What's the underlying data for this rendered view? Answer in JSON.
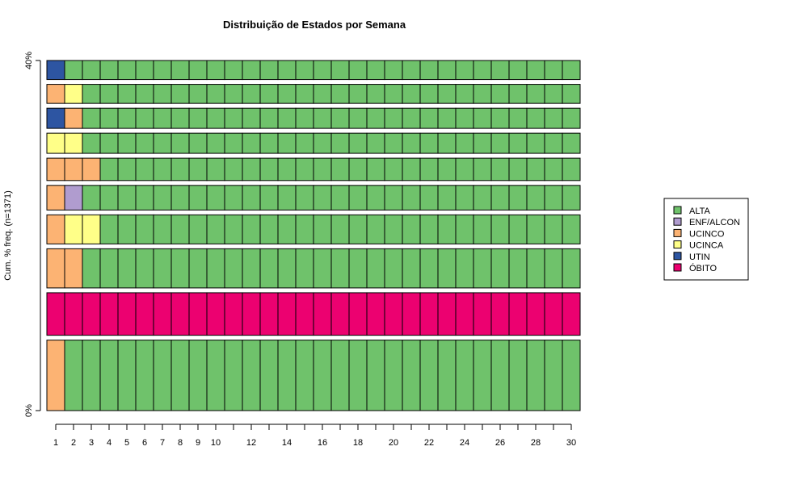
{
  "chart_data": {
    "type": "sequence-frequency-plot",
    "title": "Distribuição de Estados por Semana",
    "ylabel": "Cum. % freq. (n=1371)",
    "ytick_labels": [
      "0%",
      "40%"
    ],
    "x_ticks": [
      1,
      2,
      3,
      4,
      5,
      6,
      7,
      8,
      9,
      10,
      11,
      12,
      13,
      14,
      15,
      16,
      17,
      18,
      19,
      20,
      21,
      22,
      23,
      24,
      25,
      26,
      27,
      28,
      29,
      30
    ],
    "x_tick_labels": [
      "1",
      "2",
      "3",
      "4",
      "5",
      "6",
      "7",
      "8",
      "9",
      "10",
      "12",
      "14",
      "16",
      "18",
      "20",
      "22",
      "24",
      "26",
      "28",
      "30"
    ],
    "states": [
      {
        "name": "ALTA",
        "color": "#6FC26B"
      },
      {
        "name": "ENF/ALCON",
        "color": "#B09CCF"
      },
      {
        "name": "UCINCO",
        "color": "#FCB373"
      },
      {
        "name": "UCINCA",
        "color": "#FFFF88"
      },
      {
        "name": "UTIN",
        "color": "#2D55A2"
      },
      {
        "name": "ÓBITO",
        "color": "#EC0170"
      }
    ],
    "sequences": [
      {
        "pattern": [
          [
            "UCINCO",
            1
          ],
          [
            "ALTA",
            29
          ]
        ],
        "freq_pct": 6.3
      },
      {
        "pattern": [
          [
            "ÓBITO",
            30
          ]
        ],
        "freq_pct": 3.8
      },
      {
        "pattern": [
          [
            "UCINCO",
            2
          ],
          [
            "ALTA",
            28
          ]
        ],
        "freq_pct": 3.5
      },
      {
        "pattern": [
          [
            "UCINCO",
            1
          ],
          [
            "UCINCA",
            2
          ],
          [
            "ALTA",
            27
          ]
        ],
        "freq_pct": 2.6
      },
      {
        "pattern": [
          [
            "UCINCO",
            1
          ],
          [
            "ENF/ALCON",
            1
          ],
          [
            "ALTA",
            28
          ]
        ],
        "freq_pct": 2.2
      },
      {
        "pattern": [
          [
            "UCINCO",
            3
          ],
          [
            "ALTA",
            27
          ]
        ],
        "freq_pct": 2.0
      },
      {
        "pattern": [
          [
            "UCINCA",
            2
          ],
          [
            "ALTA",
            28
          ]
        ],
        "freq_pct": 1.8
      },
      {
        "pattern": [
          [
            "UTIN",
            1
          ],
          [
            "UCINCO",
            1
          ],
          [
            "ALTA",
            28
          ]
        ],
        "freq_pct": 1.8
      },
      {
        "pattern": [
          [
            "UCINCO",
            1
          ],
          [
            "UCINCA",
            1
          ],
          [
            "ALTA",
            28
          ]
        ],
        "freq_pct": 1.7
      },
      {
        "pattern": [
          [
            "UTIN",
            1
          ],
          [
            "ALTA",
            29
          ]
        ],
        "freq_pct": 1.7
      }
    ]
  }
}
